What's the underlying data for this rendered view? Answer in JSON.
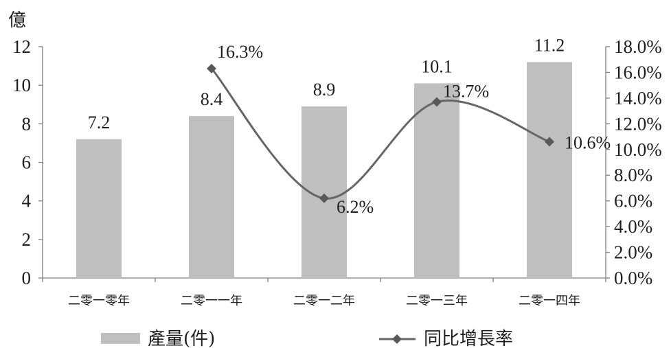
{
  "chart_data": {
    "type": "bar",
    "categories": [
      "二零一零年",
      "二零一一年",
      "二零一二年",
      "二零一三年",
      "二零一四年"
    ],
    "series": [
      {
        "name": "產量(件)",
        "type": "bar",
        "axis": "left",
        "values": [
          7.2,
          8.4,
          8.9,
          10.1,
          11.2
        ],
        "labels": [
          "7.2",
          "8.4",
          "8.9",
          "10.1",
          "11.2"
        ],
        "color": "#bfbfbf"
      },
      {
        "name": "同比增長率",
        "type": "line",
        "axis": "right",
        "smooth": true,
        "marker": "diamond",
        "values": [
          null,
          16.3,
          6.2,
          13.7,
          10.6
        ],
        "labels": [
          null,
          "16.3%",
          "6.2%",
          "13.7%",
          "10.6%"
        ],
        "color": "#666666",
        "marker_color": "#595959"
      }
    ],
    "y_left": {
      "label": "億",
      "min": 0,
      "max": 12,
      "ticks": [
        0,
        2,
        4,
        6,
        8,
        10,
        12
      ],
      "tick_labels": [
        "0",
        "2",
        "4",
        "6",
        "8",
        "10",
        "12"
      ]
    },
    "y_right": {
      "min": 0,
      "max": 18,
      "ticks": [
        0,
        2,
        4,
        6,
        8,
        10,
        12,
        14,
        16,
        18
      ],
      "tick_labels": [
        "0.0%",
        "2.0%",
        "4.0%",
        "6.0%",
        "8.0%",
        "10.0%",
        "12.0%",
        "14.0%",
        "16.0%",
        "18.0%"
      ]
    },
    "axis_color": "#808080",
    "grid": false,
    "legend": "bottom"
  }
}
